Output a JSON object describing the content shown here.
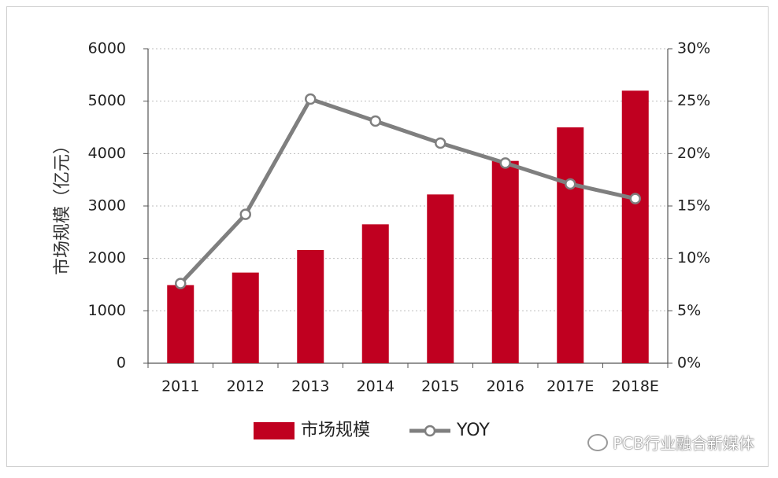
{
  "chart_data": {
    "type": "bar+line",
    "categories": [
      "2011",
      "2012",
      "2013",
      "2014",
      "2015",
      "2016",
      "2017E",
      "2018E"
    ],
    "series": [
      {
        "name": "市场规模",
        "type": "bar",
        "axis": "left",
        "values": [
          1490,
          1730,
          2160,
          2650,
          3220,
          3860,
          4500,
          5200
        ],
        "color": "#c00020"
      },
      {
        "name": "YOY",
        "type": "line",
        "axis": "right",
        "values": [
          7.6,
          14.2,
          25.2,
          23.1,
          21.0,
          19.1,
          17.1,
          15.7
        ],
        "color": "#7f7f7f"
      }
    ],
    "ylabel": "市场规模（亿元）",
    "ylim": [
      0,
      6000
    ],
    "yticks": [
      "0",
      "1000",
      "2000",
      "3000",
      "4000",
      "5000",
      "6000"
    ],
    "y2lim": [
      0,
      30
    ],
    "y2ticks": [
      "0%",
      "5%",
      "10%",
      "15%",
      "20%",
      "25%",
      "30%"
    ],
    "grid": "dotted horizontal",
    "legend": "bottom"
  },
  "legend": {
    "bar_label": "市场规模",
    "line_label": "YOY"
  },
  "watermark": {
    "text": "PCB行业融合新媒体",
    "icon": "wechat-icon"
  }
}
